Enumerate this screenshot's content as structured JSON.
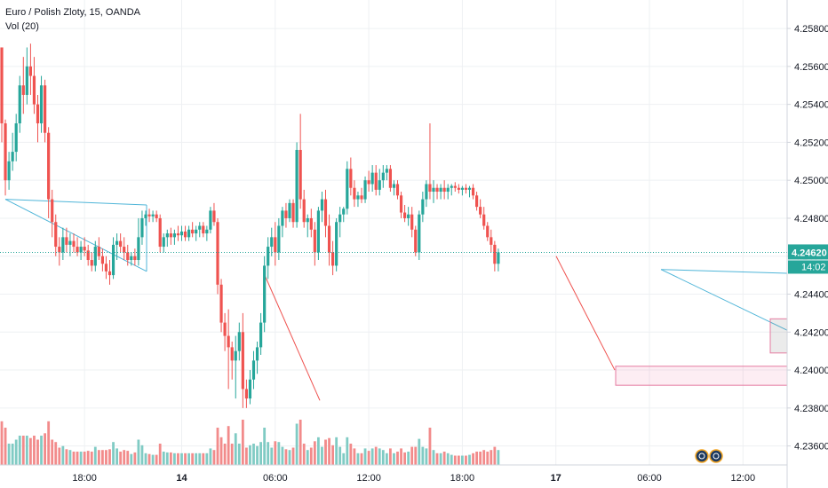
{
  "legend": {
    "symbol": "Euro / Polish Zloty, 15, OANDA",
    "volume": "Vol (20)"
  },
  "colors": {
    "up": "#26a69a",
    "down": "#ef5350",
    "vol_up": "#80cbc4",
    "vol_down": "#f28b8b",
    "grid": "#eef0f3",
    "price_line": "#26a69a",
    "trend_blue": "#4fb5d8",
    "trend_red": "#ef5350",
    "axis_text": "#131722"
  },
  "chart_data": {
    "type": "candlestick",
    "instrument": "Euro / Polish Zloty",
    "interval": "15",
    "source": "OANDA",
    "y_axis": {
      "min": 4.235,
      "max": 4.2595,
      "ticks": [
        "4.23600",
        "4.23800",
        "4.24000",
        "4.24200",
        "4.24400",
        "4.24600",
        "4.24800",
        "4.25000",
        "4.25200",
        "4.25400",
        "4.25600",
        "4.25800"
      ]
    },
    "x_axis": {
      "ticks": [
        {
          "label": "18:00",
          "bar": 23
        },
        {
          "label": "14",
          "bar": 50
        },
        {
          "label": "06:00",
          "bar": 76
        },
        {
          "label": "12:00",
          "bar": 102
        },
        {
          "label": "18:00",
          "bar": 128
        },
        {
          "label": "17",
          "bar": 154
        },
        {
          "label": "06:00",
          "bar": 180
        },
        {
          "label": "12:00",
          "bar": 206
        }
      ]
    },
    "current_price": {
      "value": 4.2462,
      "label": "4.24620",
      "countdown": "14:02"
    },
    "ohlc": [
      [
        4.257,
        4.2568,
        4.252,
        4.253
      ],
      [
        4.253,
        4.2532,
        4.2492,
        4.25
      ],
      [
        4.25,
        4.2515,
        4.2495,
        4.251
      ],
      [
        4.251,
        4.2525,
        4.2505,
        4.2515
      ],
      [
        4.2515,
        4.2535,
        4.251,
        4.253
      ],
      [
        4.253,
        4.2555,
        4.2525,
        4.255
      ],
      [
        4.255,
        4.2565,
        4.2535,
        4.2545
      ],
      [
        4.2545,
        4.257,
        4.254,
        4.256
      ],
      [
        4.256,
        4.2572,
        4.2545,
        4.2555
      ],
      [
        4.2555,
        4.2565,
        4.2535,
        4.254
      ],
      [
        4.254,
        4.2545,
        4.252,
        4.253
      ],
      [
        4.253,
        4.2555,
        4.2525,
        4.255
      ],
      [
        4.255,
        4.2553,
        4.252,
        4.2525
      ],
      [
        4.2525,
        4.2528,
        4.248,
        4.249
      ],
      [
        4.249,
        4.2495,
        4.247,
        4.2478
      ],
      [
        4.2478,
        4.2482,
        4.246,
        4.2465
      ],
      [
        4.2465,
        4.247,
        4.2455,
        4.2462
      ],
      [
        4.2462,
        4.2475,
        4.2458,
        4.247
      ],
      [
        4.247,
        4.2475,
        4.2462,
        4.2466
      ],
      [
        4.2466,
        4.2472,
        4.246,
        4.2468
      ],
      [
        4.2468,
        4.2472,
        4.2462,
        4.2465
      ],
      [
        4.2465,
        4.247,
        4.246,
        4.2462
      ],
      [
        4.2462,
        4.2468,
        4.2458,
        4.2465
      ],
      [
        4.2465,
        4.247,
        4.246,
        4.2463
      ],
      [
        4.2463,
        4.2466,
        4.2455,
        4.2458
      ],
      [
        4.2458,
        4.2462,
        4.2452,
        4.2455
      ],
      [
        4.2455,
        4.2468,
        4.2452,
        4.2465
      ],
      [
        4.2465,
        4.247,
        4.2458,
        4.246
      ],
      [
        4.246,
        4.2464,
        4.2452,
        4.2456
      ],
      [
        4.2456,
        4.246,
        4.2448,
        4.2452
      ],
      [
        4.2452,
        4.2458,
        4.2445,
        4.245
      ],
      [
        4.245,
        4.247,
        4.2448,
        4.2466
      ],
      [
        4.2466,
        4.2472,
        4.2458,
        4.2468
      ],
      [
        4.2468,
        4.2472,
        4.2462,
        4.2465
      ],
      [
        4.2465,
        4.247,
        4.2458,
        4.2462
      ],
      [
        4.2462,
        4.2466,
        4.2455,
        4.2458
      ],
      [
        4.2458,
        4.2462,
        4.2455,
        4.246
      ],
      [
        4.246,
        4.2464,
        4.2455,
        4.2458
      ],
      [
        4.2458,
        4.248,
        4.2455,
        4.247
      ],
      [
        4.247,
        4.2484,
        4.2466,
        4.248
      ],
      [
        4.248,
        4.2484,
        4.2476,
        4.2482
      ],
      [
        4.2482,
        4.2485,
        4.2478,
        4.2481
      ],
      [
        4.2481,
        4.2484,
        4.2478,
        4.2482
      ],
      [
        4.2482,
        4.2484,
        4.2478,
        4.248
      ],
      [
        4.248,
        4.2482,
        4.2462,
        4.2465
      ],
      [
        4.2465,
        4.2472,
        4.2462,
        4.247
      ],
      [
        4.247,
        4.2474,
        4.2465,
        4.2472
      ],
      [
        4.2472,
        4.2475,
        4.2466,
        4.247
      ],
      [
        4.247,
        4.2474,
        4.2466,
        4.2472
      ],
      [
        4.2472,
        4.2476,
        4.2468,
        4.2471
      ],
      [
        4.2471,
        4.2476,
        4.2468,
        4.2473
      ],
      [
        4.2473,
        4.2476,
        4.2468,
        4.247
      ],
      [
        4.247,
        4.2476,
        4.2468,
        4.2474
      ],
      [
        4.2474,
        4.2478,
        4.247,
        4.2472
      ],
      [
        4.2472,
        4.2476,
        4.2468,
        4.2474
      ],
      [
        4.2474,
        4.2478,
        4.247,
        4.2476
      ],
      [
        4.2476,
        4.2478,
        4.247,
        4.2472
      ],
      [
        4.2472,
        4.2476,
        4.2468,
        4.2474
      ],
      [
        4.2474,
        4.2486,
        4.2472,
        4.2484
      ],
      [
        4.2484,
        4.2488,
        4.2476,
        4.2478
      ],
      [
        4.2478,
        4.248,
        4.244,
        4.2445
      ],
      [
        4.2445,
        4.2448,
        4.242,
        4.2425
      ],
      [
        4.2425,
        4.243,
        4.241,
        4.2418
      ],
      [
        4.2418,
        4.2432,
        4.239,
        4.2412
      ],
      [
        4.2412,
        4.2415,
        4.2395,
        4.2405
      ],
      [
        4.2405,
        4.2418,
        4.2385,
        4.241
      ],
      [
        4.241,
        4.2425,
        4.2405,
        4.242
      ],
      [
        4.242,
        4.243,
        4.238,
        4.239
      ],
      [
        4.239,
        4.2395,
        4.238,
        4.2385
      ],
      [
        4.2385,
        4.24,
        4.2382,
        4.2395
      ],
      [
        4.2395,
        4.241,
        4.239,
        4.2405
      ],
      [
        4.2405,
        4.2415,
        4.2398,
        4.2412
      ],
      [
        4.2412,
        4.243,
        4.2408,
        4.2425
      ],
      [
        4.2425,
        4.246,
        4.242,
        4.2455
      ],
      [
        4.2455,
        4.247,
        4.2448,
        4.2465
      ],
      [
        4.2465,
        4.2475,
        4.246,
        4.247
      ],
      [
        4.247,
        4.2478,
        4.2455,
        4.2462
      ],
      [
        4.2462,
        4.248,
        4.2458,
        4.2476
      ],
      [
        4.2476,
        4.2486,
        4.247,
        4.2484
      ],
      [
        4.2484,
        4.2488,
        4.2475,
        4.248
      ],
      [
        4.248,
        4.249,
        4.2478,
        4.2488
      ],
      [
        4.2488,
        4.249,
        4.2475,
        4.2478
      ],
      [
        4.2478,
        4.252,
        4.2475,
        4.2516
      ],
      [
        4.2516,
        4.2535,
        4.2485,
        4.249
      ],
      [
        4.249,
        4.2495,
        4.2475,
        4.2478
      ],
      [
        4.2478,
        4.2482,
        4.247,
        4.248
      ],
      [
        4.248,
        4.2485,
        4.247,
        4.2474
      ],
      [
        4.2474,
        4.2478,
        4.2455,
        4.2462
      ],
      [
        4.2462,
        4.2486,
        4.2458,
        4.2484
      ],
      [
        4.2484,
        4.2494,
        4.2478,
        4.249
      ],
      [
        4.249,
        4.2495,
        4.247,
        4.2476
      ],
      [
        4.2476,
        4.2482,
        4.2455,
        4.2462
      ],
      [
        4.2462,
        4.2468,
        4.245,
        4.2455
      ],
      [
        4.2455,
        4.248,
        4.2452,
        4.2478
      ],
      [
        4.2478,
        4.2486,
        4.247,
        4.2482
      ],
      [
        4.2482,
        4.2486,
        4.2478,
        4.2485
      ],
      [
        4.2485,
        4.251,
        4.2482,
        4.2506
      ],
      [
        4.2506,
        4.2512,
        4.2492,
        4.2496
      ],
      [
        4.2496,
        4.25,
        4.2486,
        4.249
      ],
      [
        4.249,
        4.2494,
        4.2486,
        4.2492
      ],
      [
        4.2492,
        4.2496,
        4.2488,
        4.249
      ],
      [
        4.249,
        4.2502,
        4.2488,
        4.25
      ],
      [
        4.25,
        4.2505,
        4.2494,
        4.2498
      ],
      [
        4.2498,
        4.2508,
        4.2494,
        4.2504
      ],
      [
        4.2504,
        4.2508,
        4.2492,
        4.2495
      ],
      [
        4.2495,
        4.2506,
        4.2492,
        4.25
      ],
      [
        4.25,
        4.2508,
        4.2496,
        4.2504
      ],
      [
        4.2504,
        4.2508,
        4.25,
        4.2506
      ],
      [
        4.2506,
        4.2508,
        4.2494,
        4.2496
      ],
      [
        4.2496,
        4.25,
        4.2492,
        4.2498
      ],
      [
        4.2498,
        4.25,
        4.249,
        4.2492
      ],
      [
        4.2492,
        4.2494,
        4.248,
        4.2483
      ],
      [
        4.2483,
        4.2487,
        4.2478,
        4.248
      ],
      [
        4.248,
        4.2486,
        4.2476,
        4.2482
      ],
      [
        4.2482,
        4.2486,
        4.247,
        4.2474
      ],
      [
        4.2474,
        4.2476,
        4.246,
        4.2462
      ],
      [
        4.2462,
        4.2484,
        4.2458,
        4.2482
      ],
      [
        4.2482,
        4.2494,
        4.2478,
        4.249
      ],
      [
        4.249,
        4.25,
        4.2486,
        4.2498
      ],
      [
        4.2498,
        4.253,
        4.249,
        4.2494
      ],
      [
        4.2494,
        4.25,
        4.2488,
        4.2496
      ],
      [
        4.2496,
        4.2498,
        4.249,
        4.2494
      ],
      [
        4.2494,
        4.2498,
        4.249,
        4.2496
      ],
      [
        4.2496,
        4.25,
        4.249,
        4.2494
      ],
      [
        4.2494,
        4.2498,
        4.249,
        4.2496
      ],
      [
        4.2496,
        4.2498,
        4.2492,
        4.2497
      ],
      [
        4.2497,
        4.2499,
        4.2494,
        4.2496
      ],
      [
        4.2496,
        4.2498,
        4.2493,
        4.2495
      ],
      [
        4.2495,
        4.2497,
        4.2492,
        4.2496
      ],
      [
        4.2496,
        4.2498,
        4.2493,
        4.2495
      ],
      [
        4.2495,
        4.2497,
        4.2491,
        4.2496
      ],
      [
        4.2496,
        4.2498,
        4.249,
        4.2492
      ],
      [
        4.2492,
        4.2494,
        4.2484,
        4.2486
      ],
      [
        4.2486,
        4.249,
        4.248,
        4.2482
      ],
      [
        4.2482,
        4.2486,
        4.2474,
        4.2476
      ],
      [
        4.2476,
        4.2478,
        4.2468,
        4.247
      ],
      [
        4.247,
        4.2474,
        4.2462,
        4.2466
      ],
      [
        4.2466,
        4.2468,
        4.2452,
        4.2456
      ],
      [
        4.2456,
        4.2464,
        4.2452,
        4.2462
      ]
    ]
  }
}
